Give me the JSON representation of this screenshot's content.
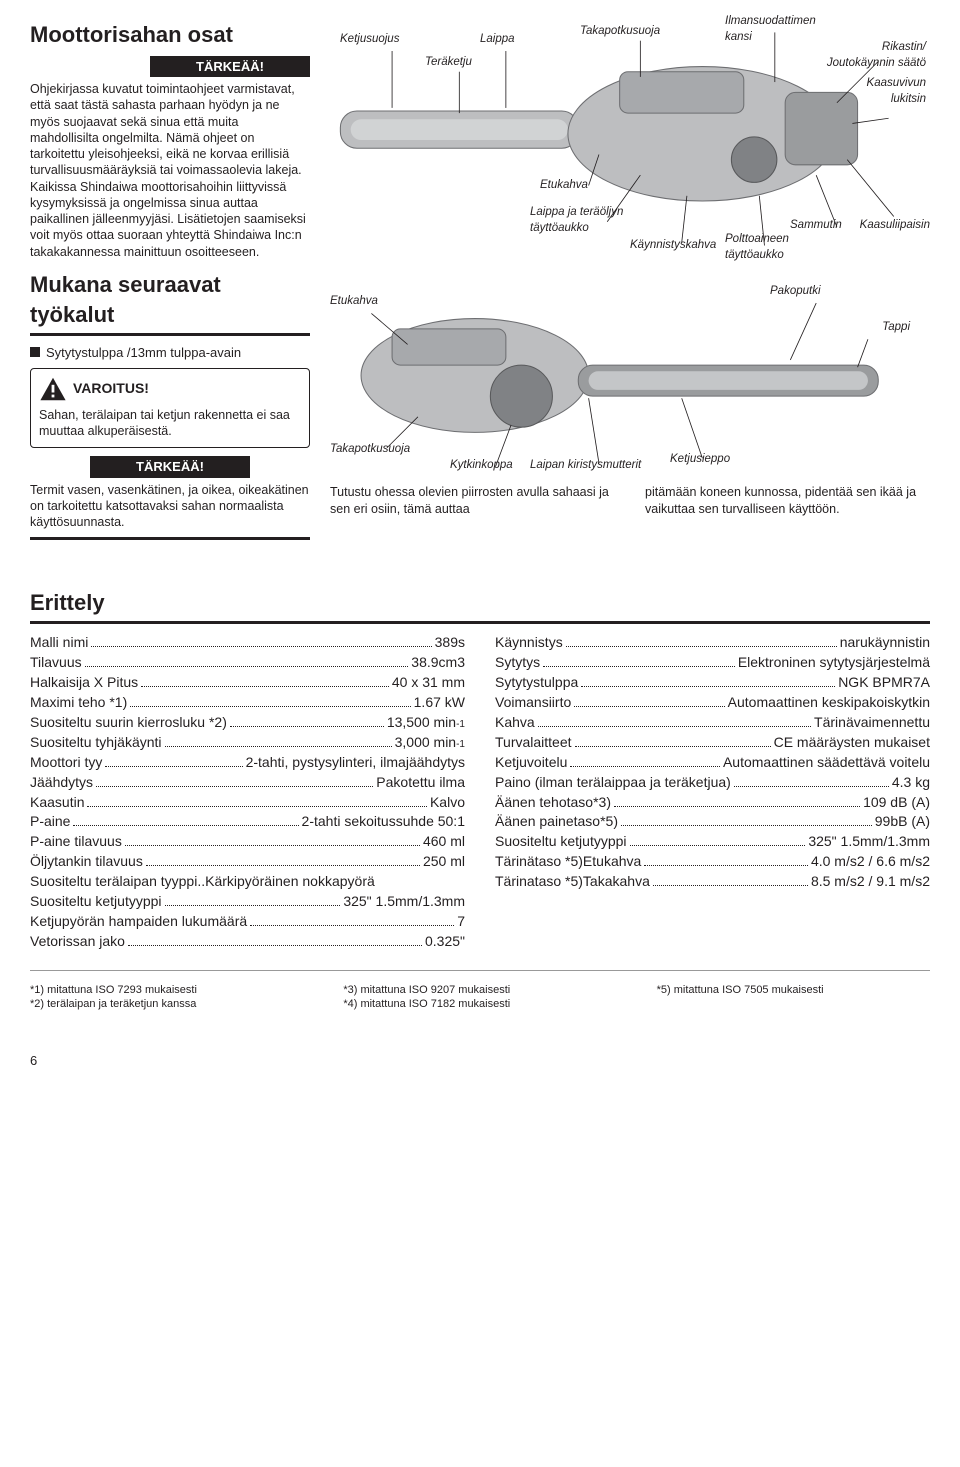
{
  "title": "Moottorisahan osat",
  "important_label": "TÄRKEÄÄ!",
  "intro_para": "Ohjekirjassa kuvatut toimintaohjeet varmistavat, että saat tästä sahasta parhaan hyödyn ja ne myös suojaavat sekä sinua että muita mahdollisilta ongelmilta. Nämä ohjeet on tarkoitettu yleisohjeeksi, eikä ne korvaa erillisiä turvallisuusmääräyksiä tai voimassaolevia lakeja. Kaikissa Shindaiwa moottorisahoihin liittyvissä kysymyksissä ja ongelmissa sinua auttaa paikallinen jälleenmyyjäsi. Lisätietojen saamiseksi voit myös ottaa suoraan yhteyttä Shindaiwa Inc:n takakakannessa mainittuun osoitteeseen.",
  "tools_title": "Mukana seuraavat työkalut",
  "tools_item": "Sytytystulppa /13mm tulppa-avain",
  "warn_label": "VAROITUS!",
  "warn_text": "Sahan, terälaipan tai ketjun rakennetta ei saa muuttaa alkuperäisestä.",
  "important2_text": "Termit vasen, vasenkätinen, ja oikea, oikeakätinen on tarkoitettu katsottavaksi sahan normaalista käyttösuunnasta.",
  "diagram1_labels": {
    "ketjusuojus": "Ketjusuojus",
    "laippa": "Laippa",
    "takapotkusuoja": "Takapotkusuoja",
    "ilmansuodattimen": "Ilmansuodattimen kansi",
    "teraketju": "Teräketju",
    "rikastin": "Rikastin/ Joutokäynnin säätö",
    "kaasuvivun": "Kaasuvivun lukitsin",
    "etukahva": "Etukahva",
    "laippa_oljy": "Laippa ja teräöljyn täyttöaukko",
    "kaynnistys": "Käynnistyskahva",
    "polttoaineen": "Polttoaineen täyttöaukko",
    "sammutin": "Sammutin",
    "kaasuliipaisin": "Kaasuliipaisin"
  },
  "diagram2_labels": {
    "etukahva": "Etukahva",
    "pakoputki": "Pakoputki",
    "tappi": "Tappi",
    "takapotku": "Takapotkusuoja",
    "kytkinkoppa": "Kytkinkoppa",
    "laipan": "Laipan kiristysmutterit",
    "ketjusieppo": "Ketjusieppo"
  },
  "caption_left": "Tutustu ohessa olevien piirrosten avulla sahaasi ja sen eri osiin, tämä auttaa",
  "caption_right": "pitämään koneen kunnossa, pidentää sen ikää ja vaikuttaa sen turvalliseen käyttöön.",
  "spec_title": "Erittely",
  "specs_left": [
    {
      "k": "Malli nimi",
      "v": "389s"
    },
    {
      "k": "Tilavuus",
      "v": "38.9cm3"
    },
    {
      "k": "Halkaisija X Pitus",
      "v": "40 x 31 mm"
    },
    {
      "k": "Maximi teho  *1)",
      "v": "1.67 kW"
    },
    {
      "k": "Suositeltu suurin kierrosluku *2)",
      "v": "13,500 min",
      "sup": "-1"
    },
    {
      "k": "Suositeltu tyhjäkäynti",
      "v": "3,000 min",
      "sup": "-1"
    },
    {
      "k": "Moottori tyy",
      "v": "2-tahti, pystysylinteri, ilmajäähdytys"
    },
    {
      "k": "Jäähdytys",
      "v": " Pakotettu ilma"
    },
    {
      "k": "Kaasutin",
      "v": " Kalvo"
    },
    {
      "k": "P-aine",
      "v": " 2-tahti sekoitussuhde 50:1"
    },
    {
      "k": "P-aine tilavuus",
      "v": " 460 ml"
    },
    {
      "k": "Öljytankin tilavuus",
      "v": "250 ml"
    },
    {
      "k": "Suositeltu terälaipan tyyppi",
      "v": "Kärkipyöräinen nokkapyörä",
      "nodots": true
    },
    {
      "k": "Suositeltu ketjutyyppi",
      "v": "325\"  1.5mm/1.3mm"
    },
    {
      "k": "Ketjupyörän hampaiden lukumäärä",
      "v": "7"
    },
    {
      "k": "Vetorissan jako",
      "v": "0.325\""
    }
  ],
  "specs_right": [
    {
      "k": "Käynnistys",
      "v": "narukäynnistin"
    },
    {
      "k": "Sytytys",
      "v": "Elektroninen sytytysjärjestelmä"
    },
    {
      "k": "Sytytystulppa",
      "v": "NGK BPMR7A"
    },
    {
      "k": "Voimansiirto",
      "v": "Automaattinen keskipakoiskytkin"
    },
    {
      "k": "Kahva",
      "v": "Tärinävaimennettu"
    },
    {
      "k": "Turvalaitteet",
      "v": "CE määräysten mukaiset"
    },
    {
      "k": "Ketjuvoitelu",
      "v": "Automaattinen säädettävä voitelu"
    },
    {
      "k": "Paino (ilman terälaippaa ja teräketjua)",
      "v": "4.3 kg"
    },
    {
      "k": "Äänen tehotaso*3)",
      "v": "109 dB (A)"
    },
    {
      "k": "Äänen painetaso*5)",
      "v": "99bB (A)"
    },
    {
      "k": "Suositeltu ketjutyyppi",
      "v": "325\"  1.5mm/1.3mm"
    },
    {
      "k": "Tärinätaso *5)Etukahva",
      "v": "4.0 m/s2  / 6.6 m/s2"
    },
    {
      "k": "Tärinataso  *5)Takakahva",
      "v": "8.5 m/s2 / 9.1 m/s2"
    }
  ],
  "footnotes": {
    "c1a": "*1) mitattuna ISO 7293 mukaisesti",
    "c1b": "*2) terälaipan ja teräketjun kanssa",
    "c2a": "*3) mitattuna ISO 9207 mukaisesti",
    "c2b": "*4) mitattuna ISO 7182 mukaisesti",
    "c3a": "*5) mitattuna ISO 7505 mukaisesti"
  },
  "page_number": "6"
}
